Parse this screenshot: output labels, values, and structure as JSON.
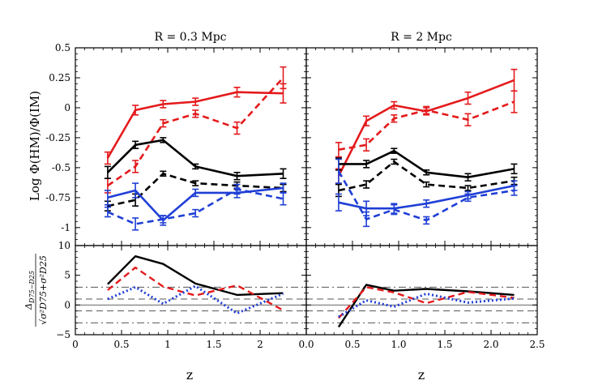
{
  "chart_data": {
    "type": "line",
    "x_ticks_left": [
      "0",
      "0.5",
      "1",
      "1.5",
      "2"
    ],
    "x_ticks_left_values": [
      0,
      0.5,
      1,
      1.5,
      2
    ],
    "x_ticks_right": [
      "0.0",
      "0.5",
      "1.0",
      "1.5",
      "2.0",
      "2.5"
    ],
    "x_ticks_right_values": [
      0,
      0.5,
      1,
      1.5,
      2,
      2.5
    ],
    "xlim": [
      0,
      2.5
    ],
    "xlabel_left": "z",
    "xlabel_right": "z",
    "top": {
      "ylabel": "Log Φ(HM)/Φ(IM)",
      "ylim": [
        -1.15,
        0.5
      ],
      "y_ticks": [
        "0.5",
        "0.25",
        "0",
        "-0.25",
        "-0.5",
        "-0.75",
        "-1"
      ],
      "y_tick_values": [
        0.5,
        0.25,
        0,
        -0.25,
        -0.5,
        -0.75,
        -1
      ],
      "panels": [
        {
          "title": "R = 0.3 Mpc",
          "x": [
            0.35,
            0.65,
            0.95,
            1.3,
            1.75,
            2.25
          ],
          "series": [
            {
              "color": "#e41a1c",
              "style": "solid",
              "values": [
                -0.42,
                -0.02,
                0.03,
                0.05,
                0.13,
                0.12
              ],
              "errors": [
                0.05,
                0.04,
                0.03,
                0.03,
                0.04,
                0.08
              ]
            },
            {
              "color": "#e41a1c",
              "style": "dashed",
              "values": [
                -0.65,
                -0.49,
                -0.13,
                -0.05,
                -0.17,
                0.25
              ],
              "errors": [
                0.06,
                0.05,
                0.03,
                0.03,
                0.05,
                0.09
              ]
            },
            {
              "color": "#000000",
              "style": "solid",
              "values": [
                -0.54,
                -0.31,
                -0.27,
                -0.49,
                -0.57,
                -0.55
              ],
              "errors": [
                0.05,
                0.03,
                0.02,
                0.02,
                0.03,
                0.04
              ]
            },
            {
              "color": "#000000",
              "style": "dashed",
              "values": [
                -0.82,
                -0.77,
                -0.55,
                -0.63,
                -0.65,
                -0.67
              ],
              "errors": [
                0.04,
                0.05,
                0.02,
                0.02,
                0.03,
                0.03
              ]
            },
            {
              "color": "#1f3fd6",
              "style": "solid",
              "values": [
                -0.75,
                -0.69,
                -0.94,
                -0.71,
                -0.71,
                -0.67
              ],
              "errors": [
                0.06,
                0.06,
                0.04,
                0.03,
                0.04,
                0.04
              ]
            },
            {
              "color": "#1f3fd6",
              "style": "dashed",
              "values": [
                -0.87,
                -0.97,
                -0.93,
                -0.88,
                -0.68,
                -0.76
              ],
              "errors": [
                0.04,
                0.05,
                0.03,
                0.03,
                0.04,
                0.05
              ]
            }
          ]
        },
        {
          "title": "R = 2 Mpc",
          "x": [
            0.35,
            0.65,
            0.95,
            1.3,
            1.75,
            2.25
          ],
          "series": [
            {
              "color": "#e41a1c",
              "style": "solid",
              "values": [
                -0.57,
                -0.11,
                0.02,
                -0.03,
                0.08,
                0.23
              ],
              "errors": [
                0.06,
                0.04,
                0.03,
                0.03,
                0.05,
                0.09
              ]
            },
            {
              "color": "#e41a1c",
              "style": "dashed",
              "values": [
                -0.35,
                -0.31,
                -0.09,
                -0.02,
                -0.1,
                0.05
              ],
              "errors": [
                0.06,
                0.05,
                0.03,
                0.03,
                0.05,
                0.09
              ]
            },
            {
              "color": "#000000",
              "style": "solid",
              "values": [
                -0.47,
                -0.47,
                -0.36,
                -0.54,
                -0.58,
                -0.51
              ],
              "errors": [
                0.05,
                0.03,
                0.02,
                0.02,
                0.03,
                0.04
              ]
            },
            {
              "color": "#000000",
              "style": "dashed",
              "values": [
                -0.69,
                -0.64,
                -0.45,
                -0.64,
                -0.67,
                -0.61
              ],
              "errors": [
                0.05,
                0.03,
                0.02,
                0.02,
                0.02,
                0.03
              ]
            },
            {
              "color": "#1f3fd6",
              "style": "solid",
              "values": [
                -0.79,
                -0.84,
                -0.84,
                -0.8,
                -0.73,
                -0.65
              ],
              "errors": [
                0.07,
                0.06,
                0.04,
                0.03,
                0.03,
                0.04
              ]
            },
            {
              "color": "#1f3fd6",
              "style": "dashed",
              "values": [
                -0.53,
                -0.93,
                -0.85,
                -0.94,
                -0.75,
                -0.69
              ],
              "errors": [
                0.1,
                0.06,
                0.04,
                0.03,
                0.03,
                0.04
              ]
            }
          ]
        }
      ]
    },
    "bottom": {
      "ylabel_numerator": "Δ",
      "ylabel_numerator_sub": "D75−D25",
      "ylabel_denominator": "√σ²D75+σ²D25",
      "ylim": [
        -5,
        10
      ],
      "y_ticks": [
        "10",
        "5",
        "0",
        "−5"
      ],
      "y_tick_values": [
        10,
        5,
        0,
        -5
      ],
      "reference_lines": [
        {
          "y": 0,
          "style": "solid",
          "color": "#666666"
        },
        {
          "y": 1,
          "style": "dashed",
          "color": "#555555"
        },
        {
          "y": -1,
          "style": "dashed",
          "color": "#555555"
        },
        {
          "y": 3,
          "style": "dashdot",
          "color": "#555555"
        },
        {
          "y": -3,
          "style": "dashdot",
          "color": "#555555"
        }
      ],
      "panels": [
        {
          "x": [
            0.35,
            0.65,
            0.95,
            1.3,
            1.75,
            2.25
          ],
          "series": [
            {
              "color": "#000000",
              "style": "solid",
              "values": [
                3.5,
                8.2,
                6.9,
                3.6,
                1.7,
                2.0
              ]
            },
            {
              "color": "#e41a1c",
              "style": "dashed",
              "values": [
                2.5,
                6.3,
                3.1,
                1.6,
                3.3,
                -0.9
              ]
            },
            {
              "color": "#1f3fd6",
              "style": "dotted",
              "values": [
                1.0,
                3.0,
                0.2,
                3.2,
                -1.4,
                1.9
              ]
            }
          ]
        },
        {
          "x": [
            0.35,
            0.65,
            0.95,
            1.3,
            1.75,
            2.25
          ],
          "series": [
            {
              "color": "#000000",
              "style": "solid",
              "values": [
                -3.7,
                3.4,
                2.4,
                2.7,
                2.3,
                1.7
              ]
            },
            {
              "color": "#e41a1c",
              "style": "dashed",
              "values": [
                -2.2,
                3.0,
                2.1,
                0.3,
                2.2,
                1.2
              ]
            },
            {
              "color": "#1f3fd6",
              "style": "dotted",
              "values": [
                -2.0,
                0.8,
                -0.3,
                1.9,
                0.4,
                1.1
              ]
            }
          ]
        }
      ]
    }
  }
}
